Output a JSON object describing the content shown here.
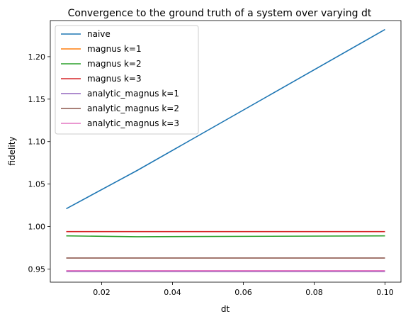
{
  "chart_data": {
    "type": "line",
    "title": "Convergence to the ground truth of a system over varying dt",
    "xlabel": "dt",
    "ylabel": "fidelity",
    "xlim": [
      0.0055,
      0.1045
    ],
    "ylim": [
      0.9345,
      1.2425
    ],
    "xticks": [
      0.02,
      0.04,
      0.06,
      0.08,
      0.1
    ],
    "xtick_labels": [
      "0.02",
      "0.04",
      "0.06",
      "0.08",
      "0.10"
    ],
    "yticks": [
      0.95,
      1.0,
      1.05,
      1.1,
      1.15,
      1.2
    ],
    "ytick_labels": [
      "0.95",
      "1.00",
      "1.05",
      "1.10",
      "1.15",
      "1.20"
    ],
    "grid": false,
    "legend_position": "top-left",
    "x": [
      0.01,
      0.03,
      0.1
    ],
    "series": [
      {
        "name": "naive",
        "color": "#1f77b4",
        "values": [
          1.021,
          1.066,
          1.232
        ]
      },
      {
        "name": "magnus k=1",
        "color": "#ff7f0e",
        "values": [
          0.948,
          0.948,
          0.948
        ]
      },
      {
        "name": "magnus k=2",
        "color": "#2ca02c",
        "values": [
          0.989,
          0.988,
          0.989
        ]
      },
      {
        "name": "magnus k=3",
        "color": "#d62728",
        "values": [
          0.994,
          0.994,
          0.994
        ]
      },
      {
        "name": "analytic_magnus k=1",
        "color": "#9467bd",
        "values": [
          0.947,
          0.947,
          0.947
        ]
      },
      {
        "name": "analytic_magnus k=2",
        "color": "#8c564b",
        "values": [
          0.963,
          0.963,
          0.963
        ]
      },
      {
        "name": "analytic_magnus k=3",
        "color": "#e377c2",
        "values": [
          0.948,
          0.948,
          0.948
        ]
      }
    ]
  }
}
